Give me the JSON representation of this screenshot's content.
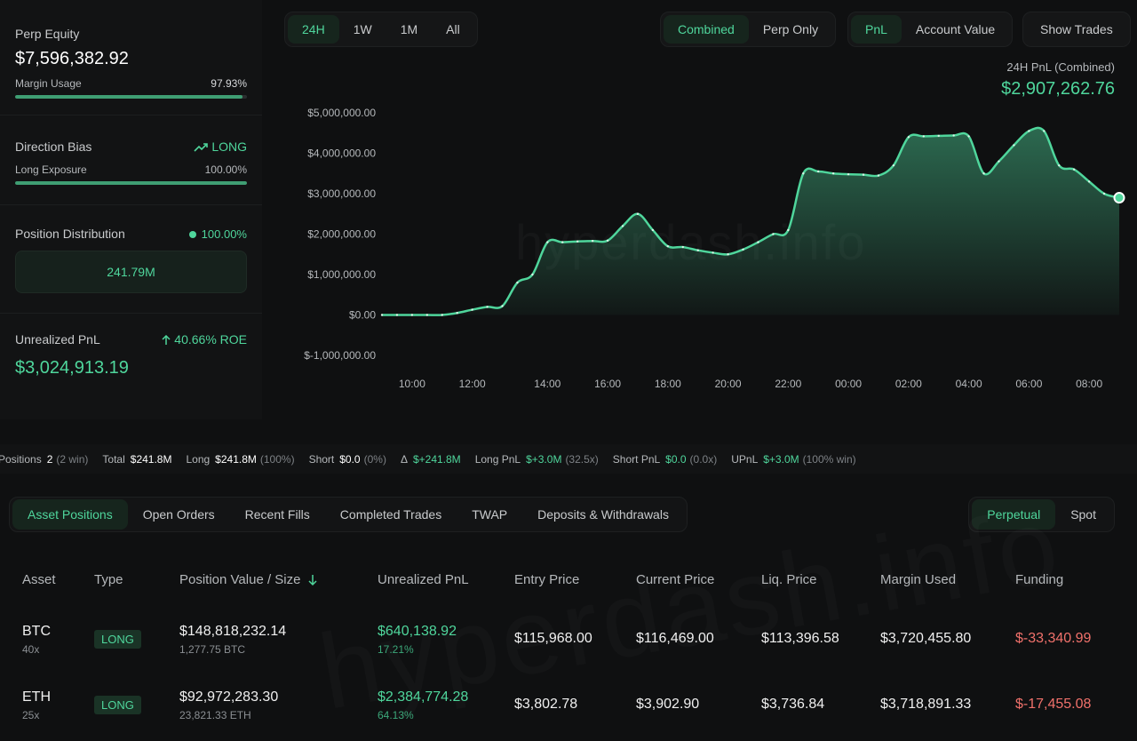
{
  "left": {
    "perp_equity": {
      "label": "Perp Equity",
      "value": "$7,596,382.92",
      "margin_label": "Margin Usage",
      "margin_value": "97.93%",
      "margin_fraction": 0.9793
    },
    "direction": {
      "label": "Direction Bias",
      "value": "LONG",
      "icon": "trend-up-icon",
      "exposure_label": "Long Exposure",
      "exposure_value": "100.00%",
      "exposure_fraction": 1.0
    },
    "distribution": {
      "label": "Position Distribution",
      "value": "100.00%",
      "box_value": "241.79M"
    },
    "upnl": {
      "label": "Unrealized PnL",
      "roe": "40.66% ROE",
      "value": "$3,024,913.19"
    }
  },
  "controls": {
    "ranges": [
      "24H",
      "1W",
      "1M",
      "All"
    ],
    "modes": [
      "Combined",
      "Perp Only"
    ],
    "metrics": [
      "PnL",
      "Account Value"
    ],
    "show_trades": "Show Trades"
  },
  "pnl_header": {
    "title": "24H PnL (Combined)",
    "value": "$2,907,262.76"
  },
  "watermark": "hyperdash.info",
  "chart_data": {
    "type": "area",
    "x": [
      "09:00",
      "09:30",
      "10:00",
      "10:30",
      "11:00",
      "11:30",
      "12:00",
      "12:30",
      "13:00",
      "13:10",
      "13:30",
      "14:00",
      "14:30",
      "15:00",
      "15:30",
      "16:00",
      "16:30",
      "17:00",
      "17:30",
      "18:00",
      "18:30",
      "19:00",
      "19:30",
      "20:00",
      "20:30",
      "21:00",
      "21:30",
      "22:00",
      "22:30",
      "23:00",
      "23:30",
      "00:00",
      "00:30",
      "01:00",
      "01:30",
      "02:00",
      "02:30",
      "03:00",
      "03:30",
      "04:00",
      "04:30",
      "05:00",
      "05:30",
      "06:00",
      "06:30",
      "07:00",
      "07:30",
      "08:00",
      "08:30",
      "09:00"
    ],
    "values": [
      0,
      0,
      0,
      0,
      0,
      50000,
      130000,
      200000,
      220000,
      800000,
      1000000,
      1800000,
      1800000,
      1820000,
      1830000,
      1840000,
      2200000,
      2500000,
      2100000,
      1700000,
      1680000,
      1600000,
      1540000,
      1500000,
      1620000,
      1800000,
      2000000,
      2100000,
      3500000,
      3550000,
      3500000,
      3480000,
      3470000,
      3450000,
      3700000,
      4400000,
      4420000,
      4430000,
      4440000,
      4420000,
      3500000,
      3800000,
      4200000,
      4550000,
      4550000,
      3700000,
      3600000,
      3300000,
      3000000,
      2900000
    ],
    "xticks": [
      "10:00",
      "12:00",
      "14:00",
      "16:00",
      "18:00",
      "20:00",
      "22:00",
      "00:00",
      "02:00",
      "04:00",
      "06:00",
      "08:00"
    ],
    "yticks": [
      "$5,000,000.00",
      "$4,000,000.00",
      "$3,000,000.00",
      "$2,000,000.00",
      "$1,000,000.00",
      "$0.00",
      "$-1,000,000.00"
    ],
    "ylim": [
      -1000000,
      5000000
    ],
    "color": "#4fd69c",
    "grid": false
  },
  "strip": {
    "positions_label": "Positions",
    "positions_value": "2",
    "positions_note": "(2 win)",
    "total_label": "Total",
    "total_value": "$241.8M",
    "long_label": "Long",
    "long_value": "$241.8M",
    "long_pct": "(100%)",
    "short_label": "Short",
    "short_value": "$0.0",
    "short_pct": "(0%)",
    "delta_label": "Δ",
    "delta_value": "$+241.8M",
    "longpnl_label": "Long PnL",
    "longpnl_value": "$+3.0M",
    "longpnl_note": "(32.5x)",
    "shortpnl_label": "Short PnL",
    "shortpnl_value": "$0.0",
    "shortpnl_note": "(0.0x)",
    "upnl_label": "UPnL",
    "upnl_value": "$+3.0M",
    "upnl_note": "(100% win)"
  },
  "tabs": [
    "Asset Positions",
    "Open Orders",
    "Recent Fills",
    "Completed Trades",
    "TWAP",
    "Deposits & Withdrawals"
  ],
  "tabs_right": [
    "Perpetual",
    "Spot"
  ],
  "table": {
    "headers": [
      "Asset",
      "Type",
      "Position Value / Size",
      "Unrealized PnL",
      "Entry Price",
      "Current Price",
      "Liq. Price",
      "Margin Used",
      "Funding"
    ],
    "sort_icon": "arrow-down-icon",
    "rows": [
      {
        "asset": "BTC",
        "leverage": "40x",
        "type": "LONG",
        "value": "$148,818,232.14",
        "size": "1,277.75 BTC",
        "upnl": "$640,138.92",
        "upnl_pct": "17.21%",
        "entry": "$115,968.00",
        "current": "$116,469.00",
        "liq": "$113,396.58",
        "margin": "$3,720,455.80",
        "funding": "$-33,340.99"
      },
      {
        "asset": "ETH",
        "leverage": "25x",
        "type": "LONG",
        "value": "$92,972,283.30",
        "size": "23,821.33 ETH",
        "upnl": "$2,384,774.28",
        "upnl_pct": "64.13%",
        "entry": "$3,802.78",
        "current": "$3,902.90",
        "liq": "$3,736.84",
        "margin": "$3,718,891.33",
        "funding": "$-17,455.08"
      }
    ]
  }
}
